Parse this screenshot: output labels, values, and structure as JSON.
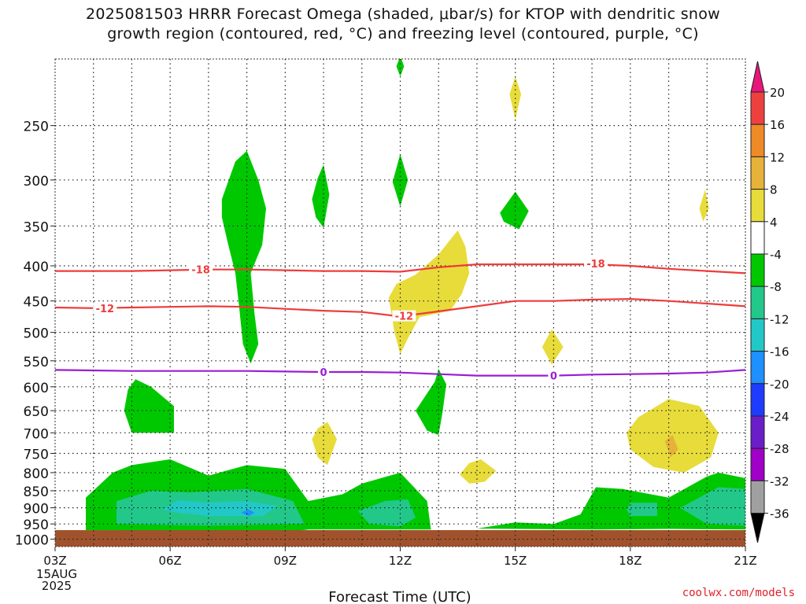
{
  "chart_data": {
    "type": "heatmap",
    "title_line1": "2025081503 HRRR Forecast Omega (shaded, μbar/s) for KTOP with dendritic snow",
    "title_line2": "growth region (contoured, red, °C) and freezing level (contoured, purple, °C)",
    "xlabel": "Forecast Time (UTC)",
    "x_ticks": [
      "03Z",
      "06Z",
      "09Z",
      "12Z",
      "15Z",
      "18Z",
      "21Z"
    ],
    "x_first_tick_date": [
      "15AUG",
      "2025"
    ],
    "x_range_hours": [
      3,
      21
    ],
    "y_ticks": [
      250,
      300,
      350,
      400,
      450,
      500,
      550,
      600,
      650,
      700,
      750,
      800,
      850,
      900,
      950,
      1000
    ],
    "y_range_hPa": [
      200,
      1025
    ],
    "grid": true,
    "colorbar": {
      "labels": [
        "20",
        "16",
        "12",
        "8",
        "4",
        "-4",
        "-8",
        "-12",
        "-16",
        "-20",
        "-24",
        "-28",
        "-32",
        "-36"
      ],
      "colors": [
        "#e8157a",
        "#ef4040",
        "#ee8a28",
        "#e6b23a",
        "#e7dc3a",
        "#ffffff",
        "#00c800",
        "#22c88a",
        "#22c8c8",
        "#1e90ff",
        "#1e3cff",
        "#6a1ec8",
        "#a000c8",
        "#a0a0a0"
      ]
    },
    "contours": [
      {
        "name": "-18",
        "color": "#ef3b3b",
        "points": [
          [
            3,
            407
          ],
          [
            4,
            407
          ],
          [
            5,
            407
          ],
          [
            6,
            406
          ],
          [
            7,
            405
          ],
          [
            8,
            405
          ],
          [
            9,
            406
          ],
          [
            10,
            407
          ],
          [
            11,
            407
          ],
          [
            12,
            408
          ],
          [
            13,
            402
          ],
          [
            14,
            398
          ],
          [
            15,
            398
          ],
          [
            16,
            398
          ],
          [
            17,
            398
          ],
          [
            18,
            400
          ],
          [
            19,
            404
          ],
          [
            20,
            407
          ],
          [
            21,
            410
          ]
        ],
        "labels": [
          [
            6.8,
            405
          ],
          [
            17.1,
            397
          ]
        ]
      },
      {
        "name": "-12",
        "color": "#ef3b3b",
        "points": [
          [
            3,
            460
          ],
          [
            4,
            461
          ],
          [
            5,
            460
          ],
          [
            6,
            459
          ],
          [
            7,
            458
          ],
          [
            8,
            459
          ],
          [
            9,
            462
          ],
          [
            10,
            465
          ],
          [
            11,
            467
          ],
          [
            12,
            474
          ],
          [
            13,
            466
          ],
          [
            14,
            458
          ],
          [
            15,
            450
          ],
          [
            16,
            450
          ],
          [
            17,
            448
          ],
          [
            18,
            447
          ],
          [
            19,
            450
          ],
          [
            20,
            454
          ],
          [
            21,
            458
          ]
        ],
        "labels": [
          [
            4.3,
            461
          ],
          [
            12.1,
            473
          ]
        ]
      },
      {
        "name": "0",
        "color": "#9a1ed2",
        "points": [
          [
            3,
            567
          ],
          [
            4,
            568
          ],
          [
            5,
            569
          ],
          [
            6,
            569
          ],
          [
            7,
            569
          ],
          [
            8,
            569
          ],
          [
            9,
            570
          ],
          [
            10,
            571
          ],
          [
            11,
            571
          ],
          [
            12,
            572
          ],
          [
            13,
            575
          ],
          [
            14,
            578
          ],
          [
            15,
            578
          ],
          [
            16,
            578
          ],
          [
            17,
            576
          ],
          [
            18,
            575
          ],
          [
            19,
            574
          ],
          [
            20,
            572
          ],
          [
            21,
            567
          ]
        ],
        "labels": [
          [
            10,
            571
          ],
          [
            16,
            578
          ]
        ]
      }
    ],
    "shaded_regions": [
      {
        "value": "-8",
        "color": "#00c800",
        "points": [
          [
            3.8,
            970
          ],
          [
            3.8,
            870
          ],
          [
            4.5,
            800
          ],
          [
            5,
            780
          ],
          [
            6,
            765
          ],
          [
            7,
            808
          ],
          [
            8,
            780
          ],
          [
            9,
            790
          ],
          [
            9.6,
            880
          ],
          [
            10.5,
            860
          ],
          [
            11,
            830
          ],
          [
            12,
            800
          ],
          [
            12.7,
            880
          ],
          [
            12.8,
            968
          ],
          [
            9.6,
            968
          ],
          [
            9.3,
            972
          ],
          [
            6,
            972
          ]
        ]
      },
      {
        "value": "-12",
        "color": "#22c88a",
        "points": [
          [
            4.6,
            950
          ],
          [
            4.6,
            880
          ],
          [
            5.5,
            850
          ],
          [
            6.5,
            855
          ],
          [
            8,
            845
          ],
          [
            9.2,
            880
          ],
          [
            9.5,
            950
          ],
          [
            7,
            955
          ],
          [
            5.5,
            952
          ]
        ]
      },
      {
        "value": "-16",
        "color": "#22c8c8",
        "points": [
          [
            5.8,
            905
          ],
          [
            6.2,
            878
          ],
          [
            7,
            885
          ],
          [
            8,
            880
          ],
          [
            8.8,
            895
          ],
          [
            8.4,
            925
          ],
          [
            7,
            925
          ],
          [
            6.2,
            915
          ]
        ]
      },
      {
        "value": "-20",
        "color": "#1e90ff",
        "points": [
          [
            7.85,
            915
          ],
          [
            8.05,
            905
          ],
          [
            8.2,
            915
          ],
          [
            8.05,
            925
          ]
        ]
      },
      {
        "value": "-12",
        "color": "#22c88a",
        "points": [
          [
            10.9,
            910
          ],
          [
            11.6,
            880
          ],
          [
            12.2,
            875
          ],
          [
            12.4,
            930
          ],
          [
            12,
            958
          ],
          [
            11.2,
            950
          ]
        ]
      },
      {
        "value": "-8",
        "color": "#00c800",
        "points": [
          [
            14,
            965
          ],
          [
            15,
            945
          ],
          [
            16,
            950
          ],
          [
            16.7,
            920
          ],
          [
            17.1,
            840
          ],
          [
            17.8,
            845
          ],
          [
            19,
            870
          ],
          [
            20,
            810
          ],
          [
            20.3,
            800
          ],
          [
            21,
            815
          ],
          [
            21,
            968
          ],
          [
            19,
            966
          ],
          [
            17,
            968
          ]
        ]
      },
      {
        "value": "-12",
        "color": "#22c88a",
        "points": [
          [
            17.9,
            905
          ],
          [
            18,
            885
          ],
          [
            18.7,
            885
          ],
          [
            18.7,
            925
          ],
          [
            18,
            925
          ]
        ]
      },
      {
        "value": "-12",
        "color": "#22c88a",
        "points": [
          [
            19.3,
            900
          ],
          [
            20.3,
            840
          ],
          [
            21,
            845
          ],
          [
            21,
            955
          ],
          [
            20,
            950
          ]
        ]
      },
      {
        "value": "-8",
        "color": "#00c800",
        "points": [
          [
            7.35,
            320
          ],
          [
            7.7,
            282
          ],
          [
            8.0,
            272
          ],
          [
            8.3,
            300
          ],
          [
            8.5,
            330
          ],
          [
            8.4,
            373
          ],
          [
            8.1,
            410
          ],
          [
            8.2,
            470
          ],
          [
            8.3,
            520
          ],
          [
            8.1,
            555
          ],
          [
            7.9,
            520
          ],
          [
            7.8,
            460
          ],
          [
            7.7,
            410
          ],
          [
            7.5,
            370
          ],
          [
            7.35,
            340
          ]
        ]
      },
      {
        "value": "-8",
        "color": "#00c800",
        "points": [
          [
            4.8,
            650
          ],
          [
            4.9,
            605
          ],
          [
            5.1,
            585
          ],
          [
            5.5,
            600
          ],
          [
            6.1,
            640
          ],
          [
            6.1,
            700
          ],
          [
            5.0,
            700
          ]
        ]
      },
      {
        "value": "-8",
        "color": "#00c800",
        "points": [
          [
            9.7,
            320
          ],
          [
            9.85,
            298
          ],
          [
            10.0,
            285
          ],
          [
            10.15,
            315
          ],
          [
            10.0,
            352
          ],
          [
            9.8,
            340
          ]
        ]
      },
      {
        "value": "-8",
        "color": "#00c800",
        "points": [
          [
            11.8,
            302
          ],
          [
            12.0,
            275
          ],
          [
            12.2,
            300
          ],
          [
            12.0,
            328
          ]
        ]
      },
      {
        "value": "-8",
        "color": "#00c800",
        "points": [
          [
            11.9,
            205
          ],
          [
            12.0,
            198
          ],
          [
            12.1,
            205
          ],
          [
            12.0,
            212
          ]
        ]
      },
      {
        "value": "-8",
        "color": "#00c800",
        "points": [
          [
            12.4,
            650
          ],
          [
            12.9,
            590
          ],
          [
            13.0,
            565
          ],
          [
            13.2,
            595
          ],
          [
            13.1,
            655
          ],
          [
            13.0,
            705
          ],
          [
            12.7,
            695
          ]
        ]
      },
      {
        "value": "-8",
        "color": "#00c800",
        "points": [
          [
            14.6,
            335
          ],
          [
            15.0,
            312
          ],
          [
            15.35,
            333
          ],
          [
            15.1,
            354
          ],
          [
            14.7,
            345
          ]
        ]
      },
      {
        "value": "4",
        "color": "#e7dc3a",
        "points": [
          [
            11.7,
            445
          ],
          [
            11.9,
            425
          ],
          [
            12.4,
            412
          ],
          [
            13.0,
            385
          ],
          [
            13.5,
            355
          ],
          [
            13.7,
            375
          ],
          [
            13.8,
            410
          ],
          [
            13.6,
            440
          ],
          [
            13.3,
            465
          ],
          [
            12.5,
            475
          ],
          [
            12.2,
            510
          ],
          [
            12.0,
            538
          ],
          [
            11.85,
            500
          ]
        ]
      },
      {
        "value": "4",
        "color": "#e7dc3a",
        "points": [
          [
            9.7,
            715
          ],
          [
            9.85,
            690
          ],
          [
            10.1,
            675
          ],
          [
            10.35,
            715
          ],
          [
            10.1,
            780
          ],
          [
            9.85,
            760
          ]
        ]
      },
      {
        "value": "4",
        "color": "#e7dc3a",
        "points": [
          [
            13.55,
            805
          ],
          [
            13.8,
            775
          ],
          [
            14.1,
            765
          ],
          [
            14.5,
            795
          ],
          [
            14.2,
            825
          ],
          [
            13.8,
            830
          ]
        ]
      },
      {
        "value": "4",
        "color": "#e7dc3a",
        "points": [
          [
            15.7,
            525
          ],
          [
            15.95,
            495
          ],
          [
            16.25,
            525
          ],
          [
            15.95,
            557
          ]
        ]
      },
      {
        "value": "4",
        "color": "#e7dc3a",
        "points": [
          [
            14.85,
            225
          ],
          [
            15.0,
            212
          ],
          [
            15.15,
            225
          ],
          [
            15.0,
            245
          ]
        ]
      },
      {
        "value": "4",
        "color": "#e7dc3a",
        "points": [
          [
            19.8,
            330
          ],
          [
            19.95,
            310
          ],
          [
            20.05,
            330
          ],
          [
            19.9,
            345
          ]
        ]
      },
      {
        "value": "4",
        "color": "#e7dc3a",
        "points": [
          [
            17.9,
            700
          ],
          [
            18.2,
            665
          ],
          [
            19,
            625
          ],
          [
            19.8,
            640
          ],
          [
            20.3,
            700
          ],
          [
            20.1,
            760
          ],
          [
            19.4,
            800
          ],
          [
            18.6,
            785
          ],
          [
            18.0,
            740
          ]
        ]
      },
      {
        "value": "8",
        "color": "#e6b23a",
        "points": [
          [
            18.9,
            720
          ],
          [
            19.1,
            705
          ],
          [
            19.25,
            740
          ],
          [
            19.05,
            760
          ]
        ]
      }
    ],
    "surface_band": {
      "color": "#a0522d",
      "from_hPa": 970,
      "to_hPa": 1025
    }
  },
  "credit": "coolwx.com/models"
}
